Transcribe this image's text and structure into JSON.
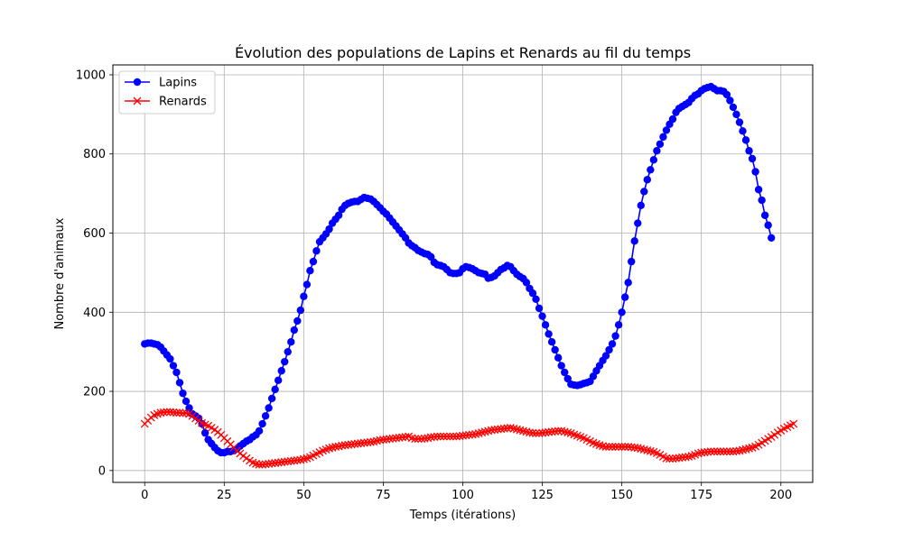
{
  "chart_data": {
    "type": "line",
    "title": "Évolution des populations de Lapins et Renards au fil du temps",
    "xlabel": "Temps (itérations)",
    "ylabel": "Nombre d'animaux",
    "xlim": [
      -10,
      210
    ],
    "ylim": [
      -30,
      1025
    ],
    "xticks": [
      0,
      25,
      50,
      75,
      100,
      125,
      150,
      175,
      200
    ],
    "yticks": [
      0,
      200,
      400,
      600,
      800,
      1000
    ],
    "grid": true,
    "legend_position": "top-left",
    "x_start": 0,
    "series": [
      {
        "name": "Lapins",
        "color": "#0000ff",
        "marker": "circle",
        "values": [
          320,
          322,
          322,
          320,
          318,
          312,
          302,
          292,
          282,
          265,
          248,
          222,
          195,
          175,
          158,
          143,
          138,
          132,
          118,
          95,
          78,
          68,
          58,
          50,
          45,
          45,
          48,
          48,
          50,
          55,
          62,
          68,
          74,
          78,
          85,
          90,
          100,
          118,
          138,
          158,
          182,
          205,
          228,
          252,
          275,
          300,
          325,
          355,
          378,
          405,
          440,
          470,
          505,
          528,
          555,
          578,
          588,
          598,
          610,
          625,
          635,
          645,
          660,
          670,
          675,
          678,
          680,
          680,
          685,
          690,
          688,
          686,
          680,
          672,
          664,
          655,
          648,
          638,
          628,
          618,
          608,
          598,
          588,
          575,
          568,
          563,
          556,
          552,
          548,
          546,
          540,
          526,
          520,
          518,
          515,
          508,
          500,
          498,
          498,
          500,
          510,
          515,
          513,
          510,
          505,
          500,
          498,
          496,
          486,
          488,
          492,
          500,
          508,
          512,
          518,
          515,
          505,
          496,
          490,
          485,
          475,
          460,
          448,
          433,
          410,
          390,
          368,
          345,
          325,
          305,
          285,
          265,
          248,
          232,
          218,
          216,
          215,
          217,
          220,
          222,
          225,
          238,
          252,
          265,
          278,
          290,
          305,
          320,
          340,
          368,
          400,
          438,
          475,
          528,
          580,
          625,
          670,
          705,
          735,
          760,
          785,
          808,
          825,
          843,
          860,
          875,
          888,
          905,
          915,
          920,
          925,
          930,
          940,
          948,
          952,
          960,
          965,
          968,
          970,
          965,
          960,
          960,
          958,
          950,
          935,
          918,
          900,
          880,
          858,
          835,
          808,
          788,
          755,
          710,
          683,
          645,
          620,
          588
        ]
      },
      {
        "name": "Renards",
        "color": "#ff0000",
        "marker": "x",
        "values": [
          118,
          126,
          134,
          140,
          143,
          146,
          147,
          148,
          148,
          147,
          146,
          146,
          145,
          145,
          143,
          138,
          132,
          126,
          120,
          116,
          113,
          108,
          103,
          97,
          90,
          82,
          74,
          66,
          58,
          50,
          43,
          37,
          31,
          25,
          20,
          17,
          15,
          15,
          16,
          17,
          18,
          19,
          20,
          21,
          22,
          23,
          24,
          25,
          26,
          27,
          29,
          31,
          34,
          38,
          42,
          46,
          50,
          53,
          56,
          58,
          60,
          61,
          63,
          64,
          65,
          66,
          67,
          68,
          69,
          70,
          71,
          72,
          73,
          75,
          77,
          78,
          79,
          80,
          81,
          82,
          83,
          84,
          85,
          86,
          82,
          80,
          80,
          80,
          81,
          82,
          84,
          85,
          86,
          86,
          86,
          86,
          86,
          86,
          86,
          87,
          88,
          89,
          90,
          91,
          92,
          94,
          96,
          98,
          100,
          102,
          103,
          104,
          105,
          106,
          107,
          108,
          106,
          104,
          102,
          100,
          98,
          96,
          95,
          94,
          94,
          95,
          96,
          97,
          98,
          99,
          100,
          100,
          98,
          96,
          94,
          91,
          88,
          85,
          82,
          78,
          74,
          70,
          67,
          64,
          62,
          60,
          60,
          60,
          60,
          60,
          60,
          60,
          60,
          59,
          58,
          57,
          55,
          53,
          51,
          49,
          47,
          44,
          40,
          35,
          31,
          30,
          30,
          31,
          32,
          33,
          34,
          35,
          37,
          40,
          43,
          45,
          46,
          47,
          48,
          48,
          48,
          48,
          48,
          48,
          48,
          48,
          49,
          50,
          52,
          54,
          56,
          58,
          61,
          65,
          70,
          75,
          80,
          85,
          90,
          96,
          101,
          106,
          110,
          114,
          118
        ]
      }
    ]
  }
}
